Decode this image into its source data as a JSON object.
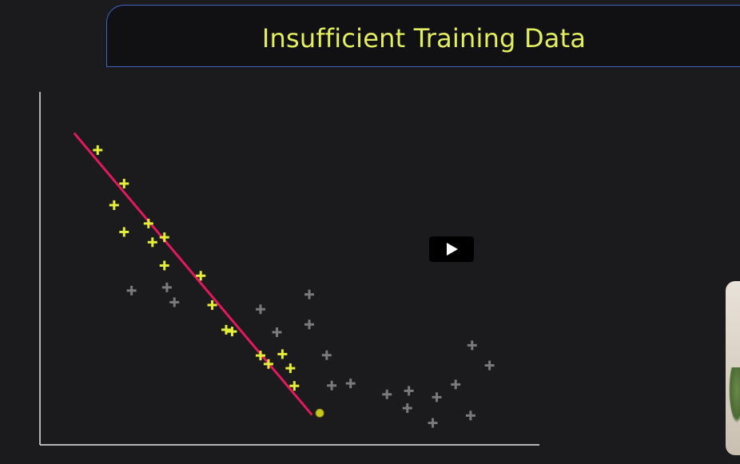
{
  "slide": {
    "title": "Insufficient Training Data"
  },
  "colors": {
    "background": "#1b1b1d",
    "title_text": "#e3ee60",
    "title_border": "#3d62c4",
    "training_points": "#e3ee3a",
    "unseen_points": "#7a7a7a",
    "fit_line": "#e0195c",
    "axis": "#e8e8e8",
    "query_point": "#c8c81e"
  },
  "video": {
    "play_button_icon": "play-icon"
  },
  "chart_data": {
    "type": "scatter",
    "title": "Insufficient Training Data",
    "xlabel": "",
    "ylabel": "",
    "xlim": [
      0,
      100
    ],
    "ylim": [
      0,
      100
    ],
    "grid": false,
    "series": [
      {
        "role": "training",
        "marker": "plus",
        "points": [
          [
            11.6,
            83.5
          ],
          [
            16.9,
            74.0
          ],
          [
            14.9,
            67.9
          ],
          [
            16.9,
            60.3
          ],
          [
            21.8,
            62.7
          ],
          [
            22.6,
            57.4
          ],
          [
            25.0,
            58.8
          ],
          [
            25.0,
            50.8
          ],
          [
            32.3,
            47.9
          ],
          [
            34.6,
            39.6
          ],
          [
            37.4,
            32.6
          ],
          [
            38.6,
            32.1
          ],
          [
            44.3,
            25.3
          ],
          [
            45.9,
            22.9
          ],
          [
            48.7,
            25.7
          ],
          [
            50.3,
            21.7
          ],
          [
            51.1,
            16.7
          ]
        ]
      },
      {
        "role": "unseen",
        "marker": "plus",
        "points": [
          [
            18.4,
            43.7
          ],
          [
            25.5,
            44.6
          ],
          [
            27.0,
            40.4
          ],
          [
            44.3,
            38.4
          ],
          [
            47.6,
            31.9
          ],
          [
            54.1,
            42.6
          ],
          [
            54.1,
            34.1
          ],
          [
            57.6,
            25.4
          ],
          [
            58.6,
            16.8
          ],
          [
            62.4,
            17.4
          ],
          [
            69.7,
            14.3
          ],
          [
            74.1,
            15.3
          ],
          [
            73.8,
            10.4
          ],
          [
            79.7,
            13.5
          ],
          [
            83.5,
            17.1
          ],
          [
            78.9,
            6.2
          ],
          [
            86.8,
            28.2
          ],
          [
            90.3,
            22.5
          ],
          [
            86.5,
            8.3
          ]
        ]
      }
    ],
    "fit_line": {
      "x": [
        7.0,
        54.5
      ],
      "y": [
        88.1,
        8.7
      ]
    },
    "query_point": {
      "x": 56.2,
      "y": 9.0
    }
  }
}
